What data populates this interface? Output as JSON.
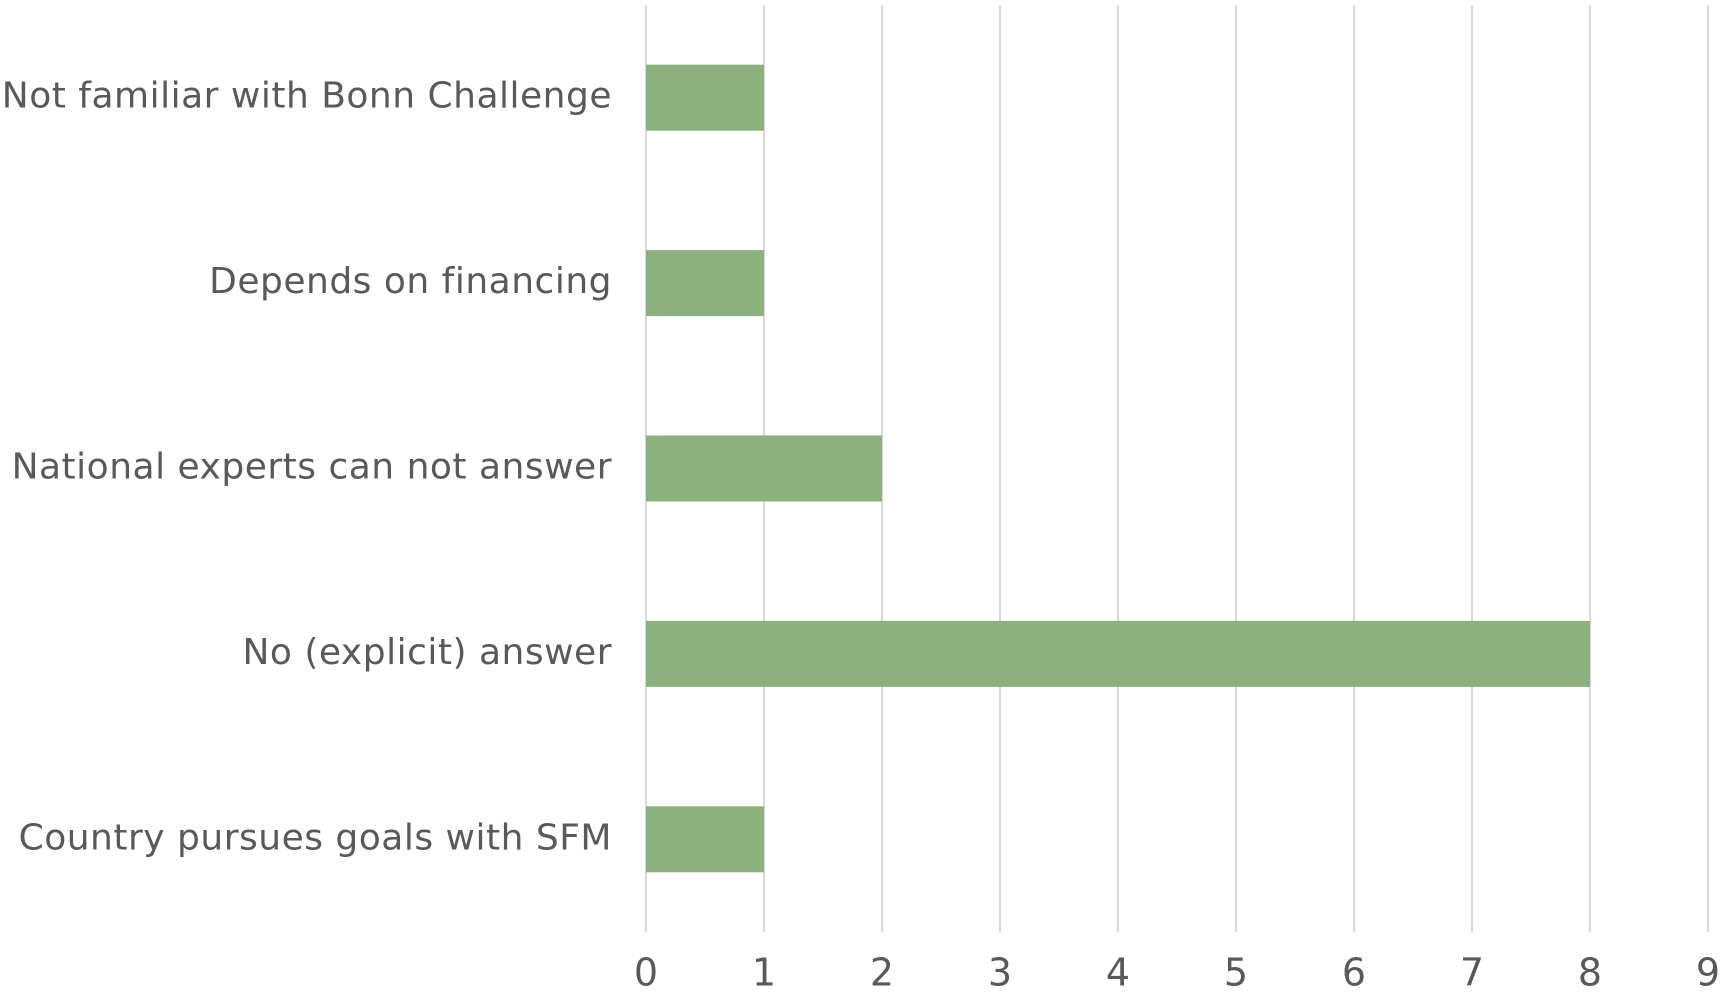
{
  "chart_data": {
    "type": "bar",
    "orientation": "horizontal",
    "categories": [
      "Not familiar with Bonn Challenge",
      "Depends on financing",
      "National experts can not answer",
      "No (explicit) answer",
      "Country pursues goals with SFM"
    ],
    "values": [
      1,
      1,
      2,
      8,
      1
    ],
    "color": "#8db07f",
    "xlim": [
      0,
      9
    ],
    "xticks": [
      0,
      1,
      2,
      3,
      4,
      5,
      6,
      7,
      8,
      9
    ],
    "grid": true
  }
}
